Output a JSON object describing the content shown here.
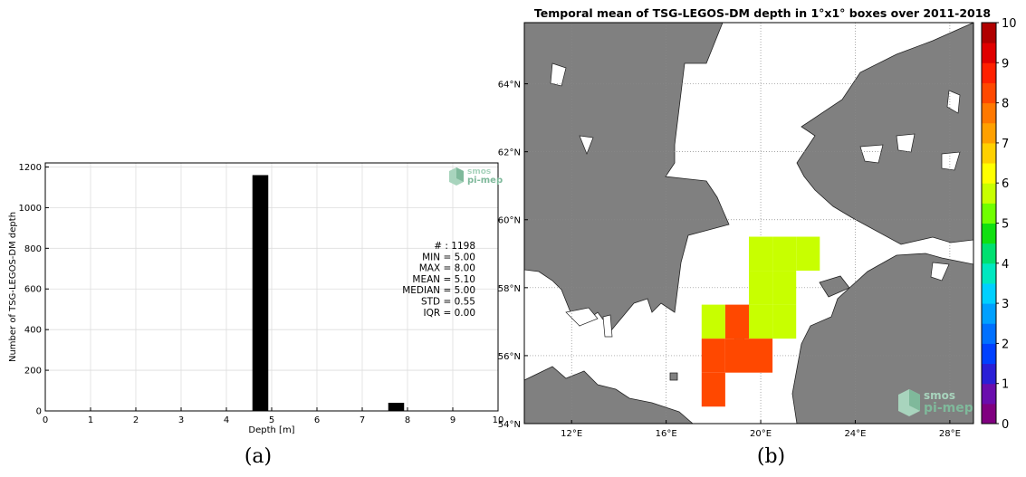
{
  "colors": {
    "bar": "#000000",
    "land": "#808080",
    "sea": "#ffffff",
    "grid": "#dddddd",
    "logo": "#7fb99b"
  },
  "logo": {
    "line1": "smos",
    "line2": "pi-mep"
  },
  "panels": {
    "a_label": "(a)",
    "b_label": "(b)"
  },
  "histogram": {
    "xlabel": "Depth [m]",
    "ylabel": "Number of TSG-LEGOS-DM depth",
    "stats": [
      "# : 1198",
      "MIN = 5.00",
      "MAX = 8.00",
      "MEAN = 5.10",
      "MEDIAN = 5.00",
      "STD = 0.55",
      "IQR = 0.00"
    ]
  },
  "map": {
    "title": "Temporal mean of TSG-LEGOS-DM depth in 1°x1° boxes over 2011-2018",
    "colorbar_ticks": [
      "0",
      "1",
      "2",
      "3",
      "4",
      "5",
      "6",
      "7",
      "8",
      "9",
      "10"
    ],
    "colorbar_colors": [
      "#800080",
      "#6a0dad",
      "#2a1fd6",
      "#0040ff",
      "#0070ff",
      "#00a0ff",
      "#00d0ff",
      "#00e8c0",
      "#00e070",
      "#10e010",
      "#70ff00",
      "#c8ff00",
      "#ffff00",
      "#ffd000",
      "#ffa000",
      "#ff7800",
      "#ff4800",
      "#ff2000",
      "#e00000",
      "#b00000"
    ],
    "lon_ticks": [
      {
        "value": 12,
        "label": "12°E"
      },
      {
        "value": 16,
        "label": "16°E"
      },
      {
        "value": 20,
        "label": "20°E"
      },
      {
        "value": 24,
        "label": "24°E"
      },
      {
        "value": 28,
        "label": "28°E"
      }
    ],
    "lat_ticks": [
      {
        "value": 54,
        "label": "54°N"
      },
      {
        "value": 56,
        "label": "56°N"
      },
      {
        "value": 58,
        "label": "58°N"
      },
      {
        "value": 60,
        "label": "60°N"
      },
      {
        "value": 62,
        "label": "62°N"
      },
      {
        "value": 64,
        "label": "64°N"
      }
    ]
  },
  "chart_data": [
    {
      "type": "bar",
      "x": [
        4.75,
        7.75
      ],
      "values": [
        1160,
        40
      ],
      "bar_width": 0.35,
      "xlabel": "Depth [m]",
      "ylabel": "Number of TSG-LEGOS-DM depth",
      "xlim": [
        0,
        10
      ],
      "ylim": [
        0,
        1220
      ],
      "xticks": [
        0,
        1,
        2,
        3,
        4,
        5,
        6,
        7,
        8,
        9,
        10
      ],
      "yticks": [
        0,
        200,
        400,
        600,
        800,
        1000,
        1200
      ],
      "grid": true
    },
    {
      "type": "heatmap",
      "title": "Temporal mean of TSG-LEGOS-DM depth in 1°x1° boxes over 2011-2018",
      "xlim": [
        10,
        29
      ],
      "ylim": [
        54,
        65.8
      ],
      "clim": [
        0,
        10
      ],
      "grid": true,
      "cells": [
        {
          "lon": 20,
          "lat": 59,
          "value": 5.5
        },
        {
          "lon": 21,
          "lat": 59,
          "value": 5.5
        },
        {
          "lon": 22,
          "lat": 59,
          "value": 5.5
        },
        {
          "lon": 20,
          "lat": 58,
          "value": 5.5
        },
        {
          "lon": 21,
          "lat": 58,
          "value": 5.5
        },
        {
          "lon": 20,
          "lat": 57,
          "value": 5.5
        },
        {
          "lon": 21,
          "lat": 57,
          "value": 5.5
        },
        {
          "lon": 18,
          "lat": 57,
          "value": 5.5
        },
        {
          "lon": 19,
          "lat": 57,
          "value": 8.2
        },
        {
          "lon": 20,
          "lat": 56,
          "value": 8.2
        },
        {
          "lon": 19,
          "lat": 56,
          "value": 8.2
        },
        {
          "lon": 18,
          "lat": 56,
          "value": 8.2
        },
        {
          "lon": 18,
          "lat": 55,
          "value": 8.2
        }
      ]
    }
  ]
}
